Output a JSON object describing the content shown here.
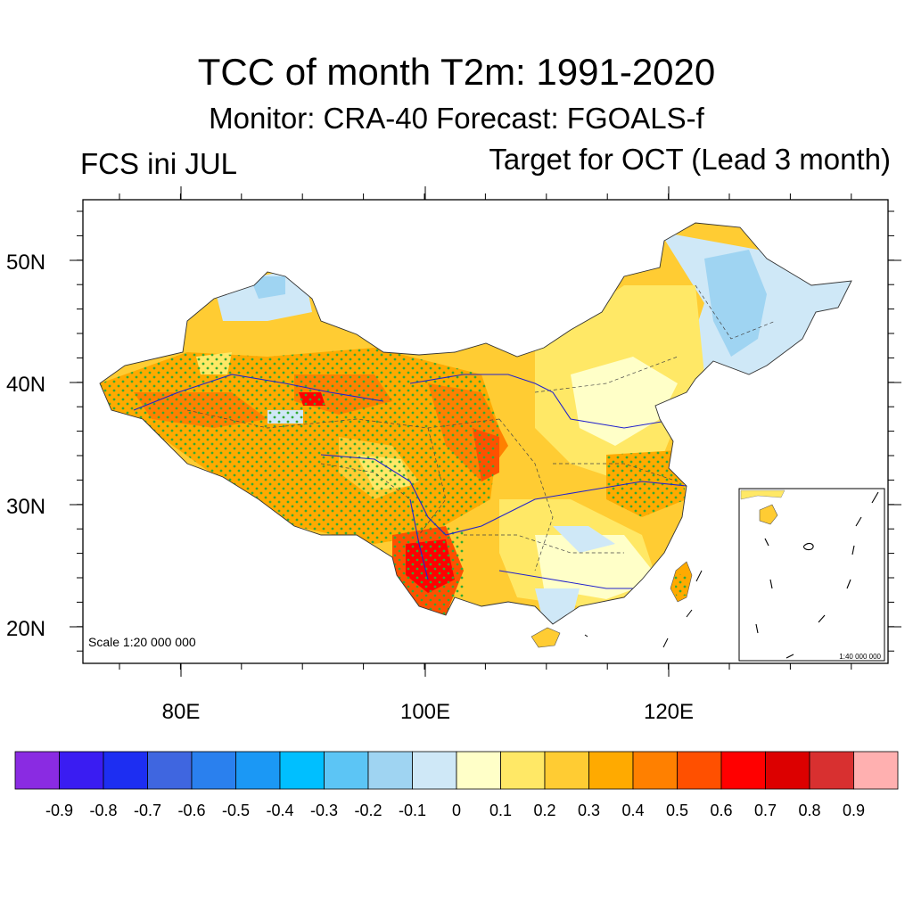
{
  "header": {
    "title": "TCC of month T2m: 1991-2020",
    "subtitle": "Monitor: CRA-40   Forecast: FGOALS-f",
    "left_label": "FCS ini JUL",
    "right_label": "Target for OCT (Lead 3 month)"
  },
  "map": {
    "lat_ticks": [
      "50N",
      "40N",
      "30N",
      "20N"
    ],
    "lon_ticks": [
      "80E",
      "100E",
      "120E"
    ],
    "scale_text": "Scale 1:20 000 000",
    "inset_scale_text": "1:40 000 000",
    "colors": {
      "stipple": "#33aa33",
      "rivers": "#2222cc"
    }
  },
  "colorbar": {
    "labels": [
      "-0.9",
      "-0.8",
      "-0.7",
      "-0.6",
      "-0.5",
      "-0.4",
      "-0.3",
      "-0.2",
      "-0.1",
      "0",
      "0.1",
      "0.2",
      "0.3",
      "0.4",
      "0.5",
      "0.6",
      "0.7",
      "0.8",
      "0.9"
    ],
    "colors": [
      "#8a2be2",
      "#3a1cf2",
      "#1d2ef2",
      "#3f66e0",
      "#2a80ee",
      "#1b98f5",
      "#00bfff",
      "#5cc5f5",
      "#9fd4f2",
      "#cfe8f7",
      "#ffffc8",
      "#ffe866",
      "#ffcc33",
      "#ffaa00",
      "#ff8000",
      "#ff5000",
      "#ff0000",
      "#dc0000",
      "#d83030",
      "#ffb0b0"
    ]
  }
}
